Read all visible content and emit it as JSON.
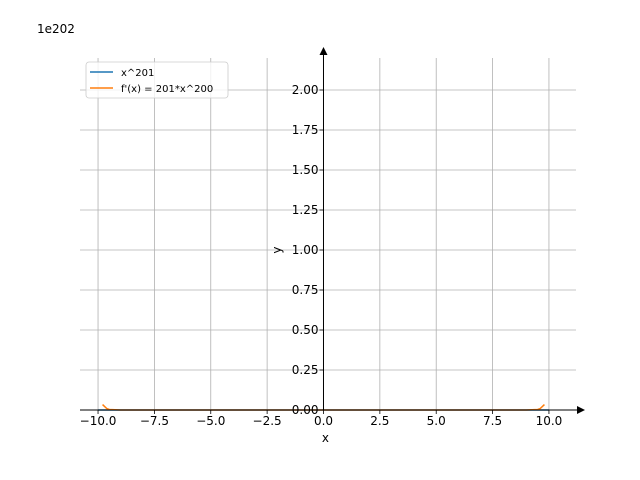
{
  "chart_data": {
    "type": "line",
    "title": "",
    "xlabel": "x",
    "ylabel": "y",
    "xlim": [
      -10.8,
      11.2
    ],
    "ylim": [
      0,
      2.2
    ],
    "y_offset_text": "1e202",
    "xticks": [
      -10,
      -7.5,
      -5,
      -2.5,
      0,
      2.5,
      5,
      7.5,
      10
    ],
    "xtick_labels": [
      "−10.0",
      "−7.5",
      "−5.0",
      "−2.5",
      "0.0",
      "2.5",
      "5.0",
      "7.5",
      "10.0"
    ],
    "yticks": [
      0,
      0.25,
      0.5,
      0.75,
      1.0,
      1.25,
      1.5,
      1.75,
      2.0
    ],
    "ytick_labels": [
      "0.00",
      "0.25",
      "0.50",
      "0.75",
      "1.00",
      "1.25",
      "1.50",
      "1.75",
      "2.00"
    ],
    "grid": true,
    "legend_position": "top-left",
    "series": [
      {
        "name": "x^201",
        "color": "#1f77b4",
        "x": [
          -10,
          -9.8,
          -9,
          -5,
          0,
          5,
          9,
          9.8,
          10
        ],
        "y": [
          0,
          0,
          0,
          0,
          0,
          0,
          0,
          0,
          0
        ]
      },
      {
        "name": "f'(x) = 201*x^200",
        "color": "#ff7f0e",
        "x": [
          -9.8,
          -9.7,
          -9.6,
          -9.5,
          -9.0,
          -5,
          0,
          5,
          9.0,
          9.5,
          9.6,
          9.7,
          9.8
        ],
        "y": [
          0.034,
          0.0205,
          0.0078,
          0.003,
          0,
          0,
          0,
          0,
          0,
          0.003,
          0.0078,
          0.0205,
          0.034
        ]
      }
    ]
  }
}
